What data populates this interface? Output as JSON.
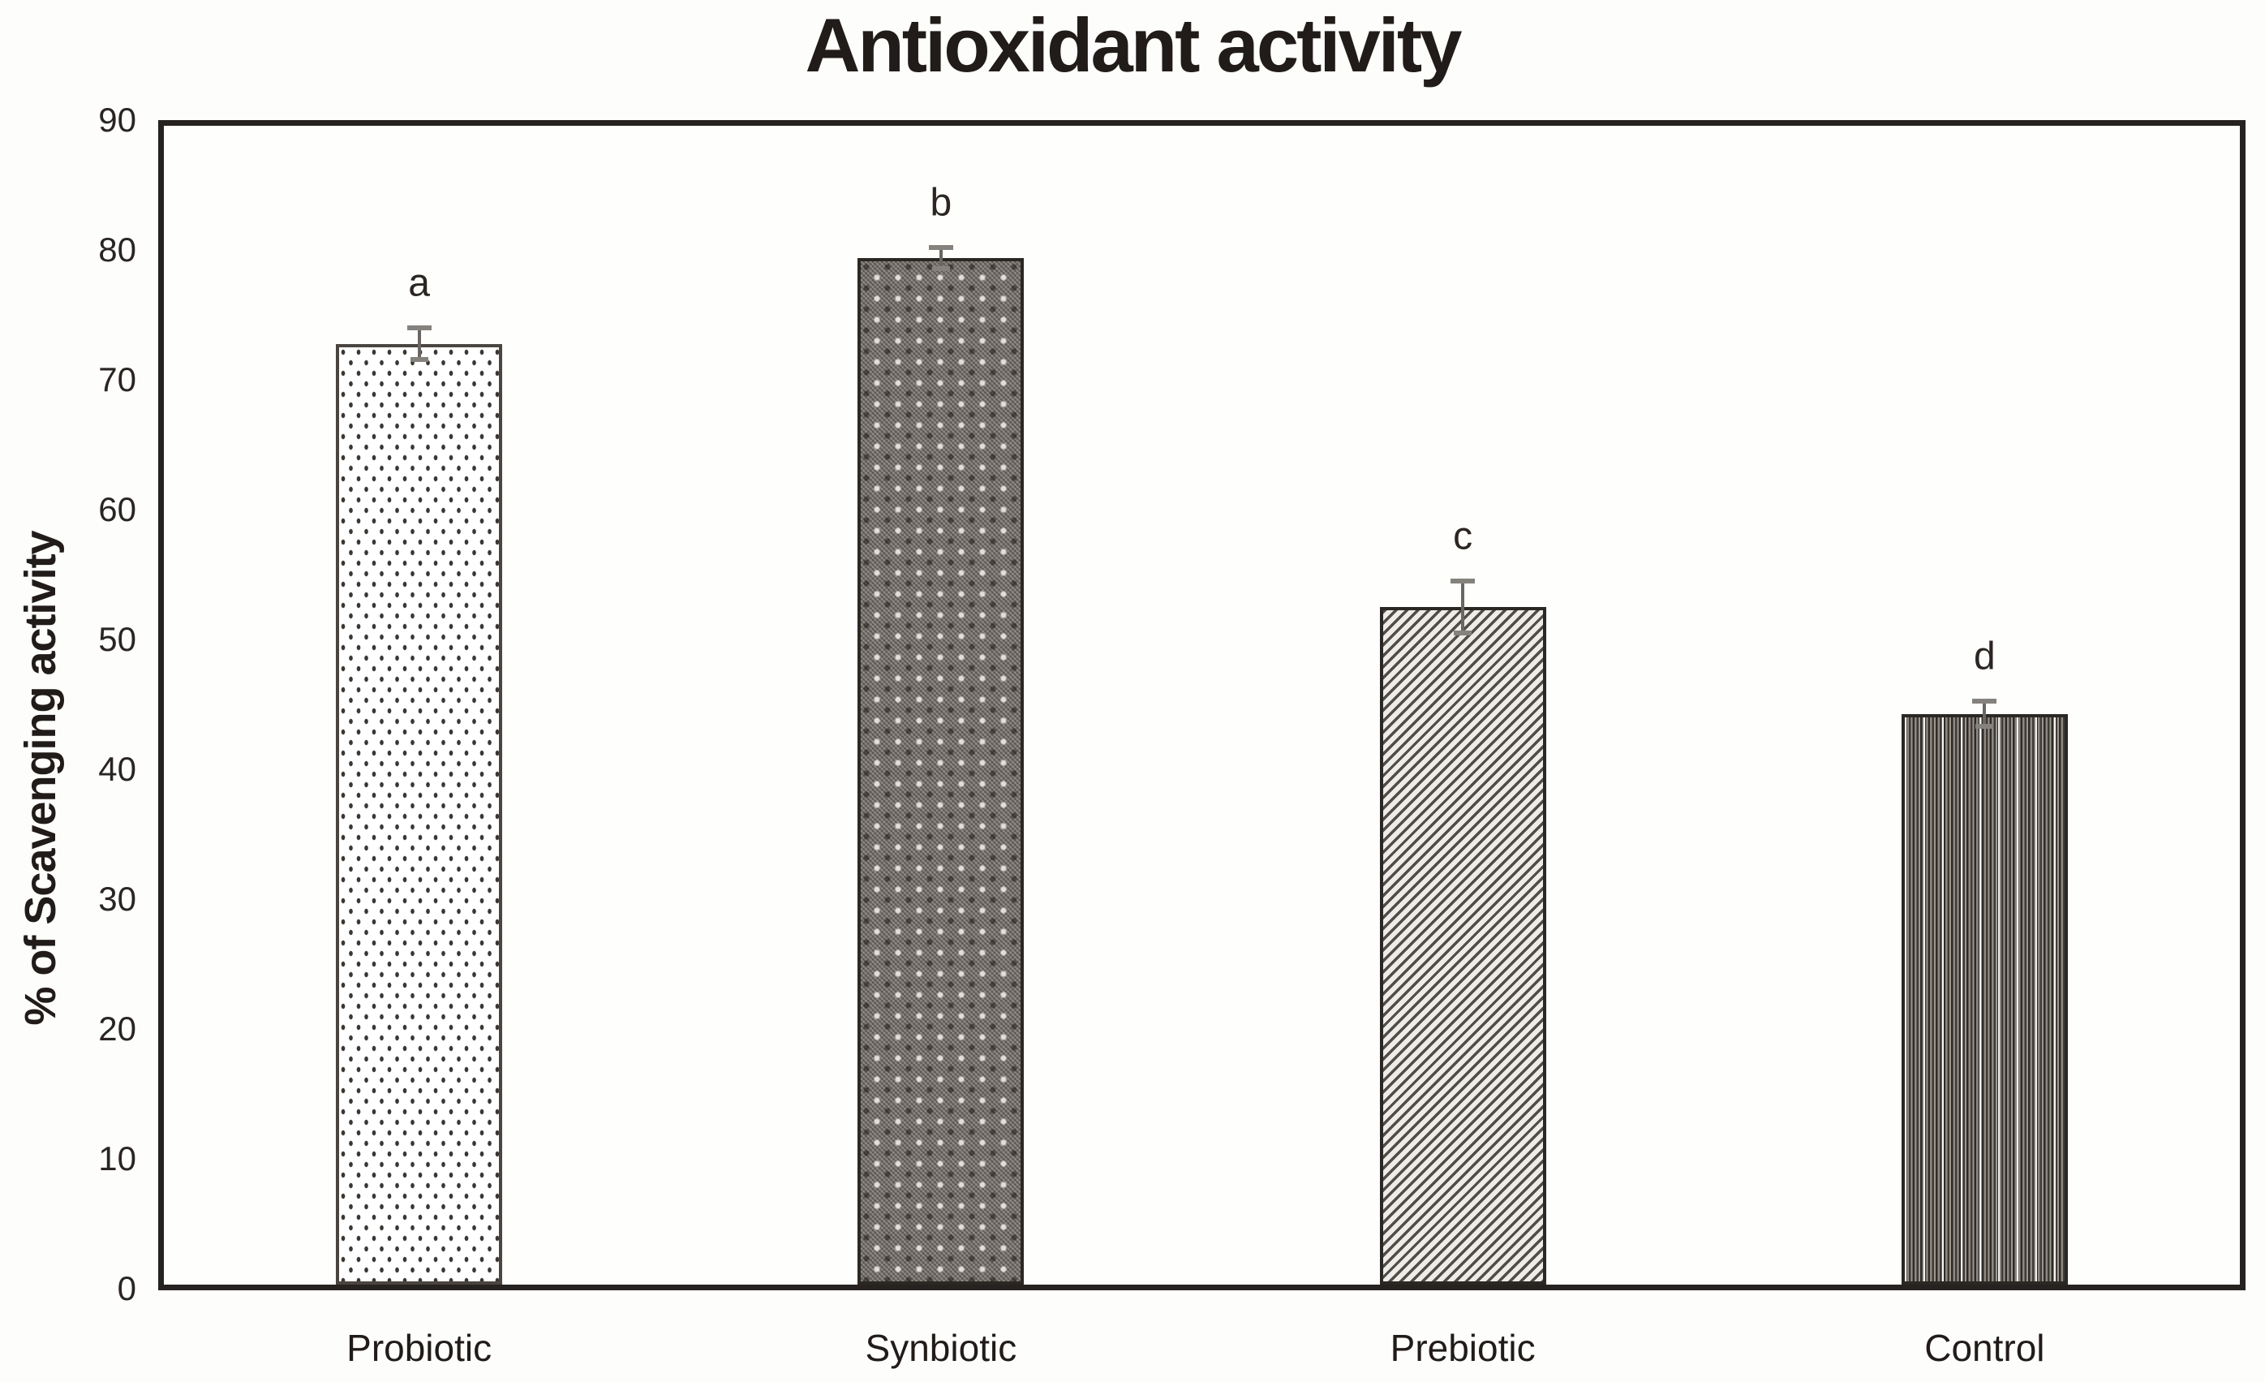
{
  "title": "Antioxidant activity",
  "chart_data": {
    "type": "bar",
    "title": "Antioxidant activity",
    "xlabel": "",
    "ylabel": "% of Scavenging activity",
    "ylim": [
      0,
      90
    ],
    "y_tick_step": 10,
    "y_ticks": [
      "0",
      "10",
      "20",
      "30",
      "40",
      "50",
      "60",
      "70",
      "80",
      "90"
    ],
    "grid": false,
    "legend": "none",
    "categories": [
      "Probiotic",
      "Synbiotic",
      "Prebiotic",
      "Control"
    ],
    "values": [
      72.9,
      79.5,
      52.6,
      44.4
    ],
    "error_bars": [
      1.2,
      0.8,
      2.0,
      0.95
    ],
    "significance_letters": [
      "a",
      "b",
      "c",
      "d"
    ],
    "bar_patterns": [
      "dots",
      "dense-checker",
      "diagonal-hatch",
      "vertical-stripes"
    ],
    "bar_pattern_descriptions": {
      "dots": "white fill with small dark dots",
      "dense-checker": "dark gray dense checkered weave",
      "diagonal-hatch": "thin diagonal line hatching",
      "vertical-stripes": "dark vertical line stripes"
    },
    "colors": {
      "frame": "#262220",
      "bar_outline": "#2b2723",
      "error_bar": "#6a6662",
      "text": "#211c19",
      "background": "#fdfdfc"
    }
  }
}
